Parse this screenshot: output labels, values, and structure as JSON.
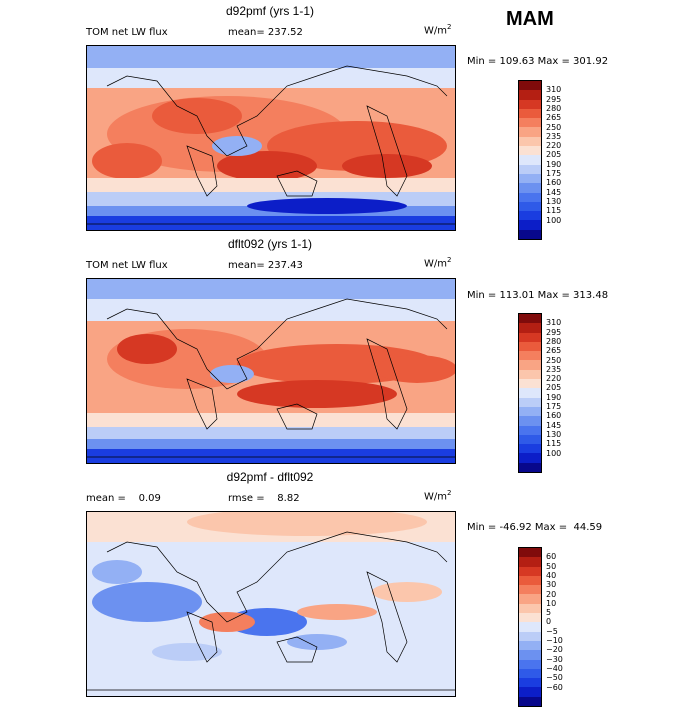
{
  "season": "MAM",
  "colors": {
    "abs_scale": [
      "#08088c",
      "#0c1ec8",
      "#1a3de0",
      "#2f5ae8",
      "#4a74ee",
      "#6c91f0",
      "#93b0f4",
      "#bbcdf7",
      "#dee7fb",
      "#fbe1d3",
      "#fbc6ac",
      "#f9a484",
      "#f47f5e",
      "#ea5b3c",
      "#d63823",
      "#b41f13",
      "#800b0b"
    ],
    "diff_scale": [
      "#08088c",
      "#0c1ec8",
      "#1a3de0",
      "#2f5ae8",
      "#4a74ee",
      "#6c91f0",
      "#93b0f4",
      "#bbcdf7",
      "#dee7fb",
      "#fbe1d3",
      "#fbc6ac",
      "#f9a484",
      "#f47f5e",
      "#ea5b3c",
      "#d63823",
      "#b41f13",
      "#800b0b"
    ]
  },
  "panels": [
    {
      "title": "d92pmf (yrs 1-1)",
      "left_label": "TOM net LW flux",
      "mid_label": "mean= 237.52",
      "units": "W/m",
      "units_sup": "2",
      "minmax": "Min = 109.63 Max = 301.92",
      "ticks": [
        "310",
        "295",
        "280",
        "265",
        "250",
        "235",
        "220",
        "205",
        "190",
        "175",
        "160",
        "145",
        "130",
        "115",
        "100"
      ]
    },
    {
      "title": "dflt092 (yrs 1-1)",
      "left_label": "TOM net LW flux",
      "mid_label": "mean= 237.43",
      "units": "W/m",
      "units_sup": "2",
      "minmax": "Min = 113.01 Max = 313.48",
      "ticks": [
        "310",
        "295",
        "280",
        "265",
        "250",
        "235",
        "220",
        "205",
        "190",
        "175",
        "160",
        "145",
        "130",
        "115",
        "100"
      ]
    },
    {
      "title": "d92pmf - dflt092",
      "left_label": "mean =    0.09",
      "mid_label": "rmse =    8.82",
      "units": "W/m",
      "units_sup": "2",
      "minmax": "Min = -46.92 Max =  44.59",
      "ticks": [
        "60",
        "50",
        "40",
        "30",
        "20",
        "10",
        "5",
        "0",
        "−5",
        "−10",
        "−20",
        "−30",
        "−40",
        "−50",
        "−60"
      ]
    }
  ]
}
